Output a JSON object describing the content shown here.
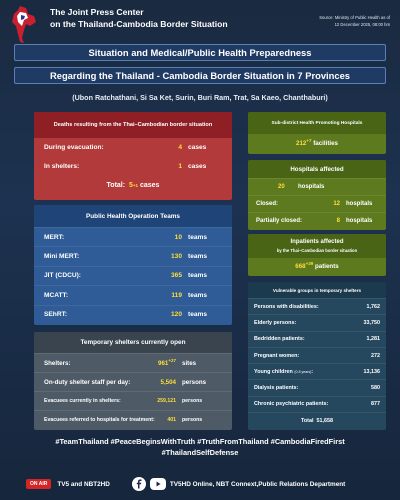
{
  "header": {
    "org_line1": "The Joint Press Center",
    "org_line2": "on the Thailand-Cambodia Border Situation",
    "source_line1": "Source: Ministry of Public Health as of",
    "source_line2": "12 December 2025, 08:00 hrs"
  },
  "titles": {
    "line1": "Situation and Medical/Public Health Preparedness",
    "line2": "Regarding the Thailand - Cambodia Border Situation in 7 Provinces",
    "provinces": "(Ubon Ratchathani, Si Sa Ket, Surin, Buri Ram, Trat, Sa Kaeo, Chanthaburi)"
  },
  "deaths": {
    "title": "Deaths resulting from the Thai–Cambodian border situation",
    "rows": [
      {
        "label": "During evacuation:",
        "value": "4",
        "unit": "cases"
      },
      {
        "label": "In shelters:",
        "value": "1",
        "unit": "cases"
      }
    ],
    "total_label": "Total:",
    "total_value": "5",
    "total_sup": "+1",
    "total_unit": "cases"
  },
  "teams": {
    "title": "Public Health Operation Teams",
    "rows": [
      {
        "label": "MERT:",
        "value": "10",
        "unit": "teams"
      },
      {
        "label": "Mini MERT:",
        "value": "130",
        "unit": "teams"
      },
      {
        "label": "JIT (CDCU):",
        "value": "365",
        "unit": "teams"
      },
      {
        "label": "MCATT:",
        "value": "119",
        "unit": "teams"
      },
      {
        "label": "SEhRT:",
        "value": "120",
        "unit": "teams"
      }
    ]
  },
  "shelters": {
    "title": "Temporary shelters currently open",
    "rows": [
      {
        "label": "Shelters:",
        "value": "961",
        "sup": "+27",
        "unit": "sites"
      },
      {
        "label": "On-duty shelter staff per day:",
        "value": "5,504",
        "unit": "persons"
      },
      {
        "label": "Evacuees currently in shelters:",
        "value": "259,121",
        "unit": "persons"
      },
      {
        "label": "Evacuees referred to hospitals for treatment:",
        "value": "401",
        "unit": "persons"
      }
    ]
  },
  "subdistrict": {
    "title": "Sub-district Health Promoting Hospitals",
    "value": "212",
    "sup": "+7",
    "unit": "facilities"
  },
  "hospitals": {
    "title": "Hospitals affected",
    "rows": [
      {
        "label": "",
        "value": "20",
        "unit": "hospitals"
      },
      {
        "label": "Closed:",
        "value": "12",
        "unit": "hospitals"
      },
      {
        "label": "Partially closed:",
        "value": "8",
        "unit": "hospitals"
      }
    ]
  },
  "inpatients": {
    "title": "Inpatients affected",
    "subtitle": "by the Thai–Cambodian border situation",
    "value": "668",
    "sup": "+39",
    "unit": "patients"
  },
  "vulnerable": {
    "title": "Vulnerable groups in temporary shelters",
    "rows": [
      {
        "label": "Persons with disabilities:",
        "note": "",
        "value": "1,762"
      },
      {
        "label": "Elderly persons:",
        "note": "",
        "value": "33,750"
      },
      {
        "label": "Bedridden patients:",
        "note": "",
        "value": "1,281"
      },
      {
        "label": "Pregnant women:",
        "note": "",
        "value": "272"
      },
      {
        "label": "Young children",
        "note": "(0-5 years)",
        "value": "13,136"
      },
      {
        "label": "Dialysis patients:",
        "note": "",
        "value": "580"
      },
      {
        "label": "Chronic psychiatric patients:",
        "note": "",
        "value": "877"
      }
    ],
    "total_label": "Total",
    "total_value": "51,658"
  },
  "hashtags": {
    "line1": "#TeamThailand #PeaceBeginsWithTruth #TruthFromThailand #CambodiaFiredFirst",
    "line2": "#ThailandSelfDefense"
  },
  "footer": {
    "on_air": "ON AIR",
    "tv": "TV5 and NBT2HD",
    "online": "TV5HD Online, NBT Connext,Public Relations Department"
  },
  "colors": {
    "accent_yellow": "#ffde3b",
    "death_red": "#b23a3a",
    "team_blue": "#2f5b96",
    "shelter_gray": "#4e5a66",
    "green": "#5e7a1f",
    "teal": "#26485e"
  }
}
